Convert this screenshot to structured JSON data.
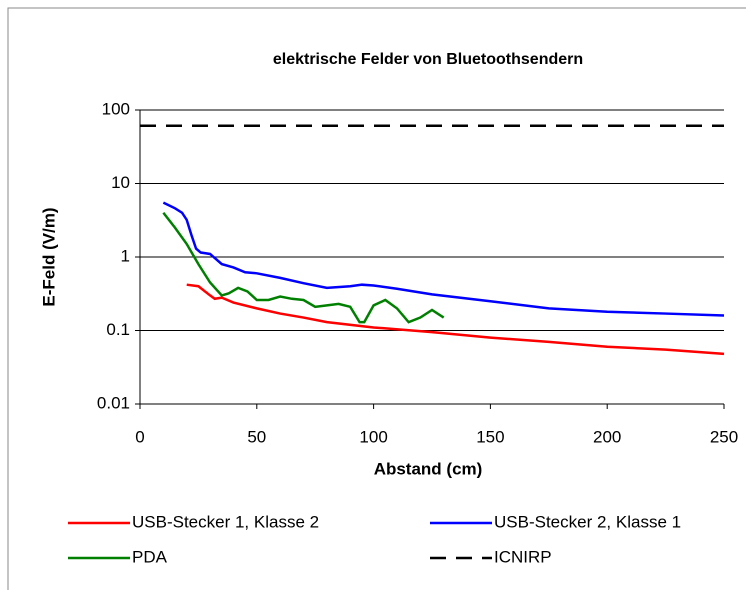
{
  "chart_data": {
    "type": "line",
    "title": "elektrische Felder von Bluetoothsendern",
    "x_label": "Abstand (cm)",
    "y_label": "E-Feld (V/m)",
    "log_y": true,
    "grid": true,
    "xlim": [
      0,
      250
    ],
    "xticks": [
      0,
      50,
      100,
      150,
      200,
      250
    ],
    "ylim": [
      0.01,
      100
    ],
    "yticks": [
      0.01,
      0.1,
      1,
      10,
      100
    ],
    "series": [
      {
        "name": "USB-Stecker 1, Klasse 2",
        "color": "#ff0000",
        "dash": false,
        "x": [
          20,
          25,
          30,
          32,
          35,
          40,
          50,
          60,
          70,
          80,
          100,
          125,
          150,
          175,
          200,
          225,
          250
        ],
        "values": [
          0.42,
          0.4,
          0.3,
          0.27,
          0.28,
          0.24,
          0.2,
          0.17,
          0.15,
          0.13,
          0.11,
          0.095,
          0.08,
          0.07,
          0.06,
          0.055,
          0.048
        ]
      },
      {
        "name": "USB-Stecker 2, Klasse 1",
        "color": "#0000ff",
        "dash": false,
        "x": [
          10,
          15,
          18,
          20,
          22,
          24,
          26,
          30,
          35,
          40,
          45,
          50,
          60,
          70,
          80,
          90,
          95,
          100,
          110,
          125,
          150,
          175,
          200,
          225,
          250
        ],
        "values": [
          5.5,
          4.6,
          4,
          3.2,
          2,
          1.3,
          1.15,
          1.1,
          0.8,
          0.72,
          0.62,
          0.6,
          0.52,
          0.44,
          0.38,
          0.4,
          0.42,
          0.41,
          0.37,
          0.31,
          0.25,
          0.2,
          0.18,
          0.17,
          0.16
        ]
      },
      {
        "name": "PDA",
        "color": "#008000",
        "dash": false,
        "x": [
          10,
          15,
          20,
          25,
          30,
          35,
          38,
          42,
          46,
          50,
          55,
          60,
          65,
          70,
          75,
          80,
          85,
          90,
          94,
          96,
          100,
          105,
          110,
          115,
          120,
          125,
          130
        ],
        "values": [
          4,
          2.5,
          1.5,
          0.8,
          0.45,
          0.3,
          0.32,
          0.38,
          0.34,
          0.26,
          0.26,
          0.29,
          0.27,
          0.26,
          0.21,
          0.22,
          0.23,
          0.21,
          0.13,
          0.13,
          0.22,
          0.26,
          0.2,
          0.13,
          0.15,
          0.19,
          0.15
        ]
      },
      {
        "name": "ICNIRP",
        "color": "#000000",
        "dash": true,
        "x": [
          0,
          250
        ],
        "values": [
          61,
          61
        ]
      }
    ]
  }
}
